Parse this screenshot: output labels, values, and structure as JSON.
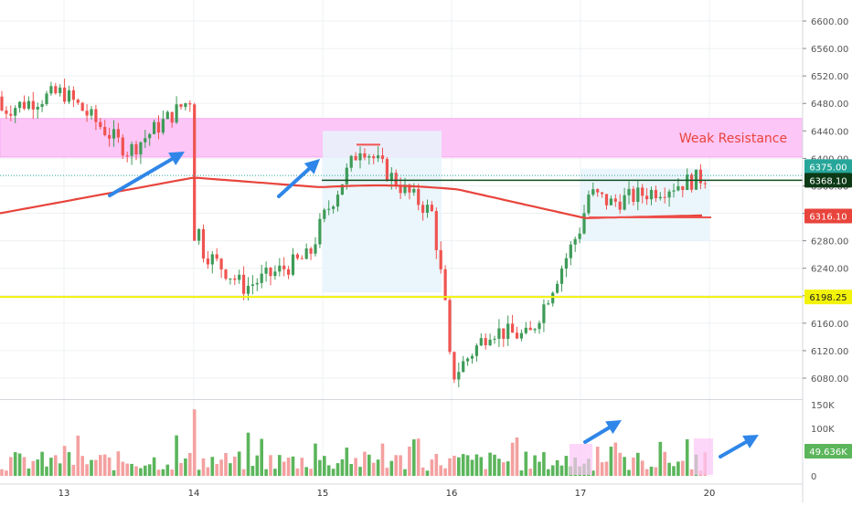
{
  "colors": {
    "up": "#26a69a",
    "up_body": "#3e9b58",
    "down": "#ef5350",
    "vol_up": "#5bb55b",
    "vol_down": "#f4a0a0",
    "ma": "#e8443c",
    "support": "#f2f20a",
    "resistance_zone": "#fcc6f7",
    "resistance_text": "#e8443c",
    "range_box": "#e7f3fb",
    "arrow": "#2f86e8",
    "ticket_green": "#1b6e34"
  },
  "chart_data": {
    "type": "candlestick",
    "instrument_timeframe": "",
    "x_tick_labels": [
      "13",
      "14",
      "15",
      "16",
      "17",
      "20"
    ],
    "y_tick_labels": [
      "6600.00",
      "6560.00",
      "6520.00",
      "6480.00",
      "6440.00",
      "6400.00",
      "6360.00",
      "6320.00",
      "6280.00",
      "6240.00",
      "6200.00",
      "6160.00",
      "6120.00",
      "6080.00"
    ],
    "ylim": [
      6060,
      6630
    ],
    "volume_tick_labels": [
      "150K",
      "100K",
      "50K",
      "0"
    ],
    "volume_ylim": [
      0,
      150000
    ],
    "price_labels": {
      "last": "6375.00",
      "trend_line": "6368.10",
      "moving_average": "6316.10",
      "support": "6198.25",
      "volume": "49.636K"
    },
    "levels": {
      "resistance_zone": [
        6402,
        6458
      ],
      "support": 6198.25,
      "trend_line": 6368.1,
      "last_price": 6375.0
    },
    "annotations": {
      "resistance_zone_label": "Weak Resistance"
    },
    "anchors": [
      {
        "label": "13",
        "day": 13,
        "price": 6495
      },
      {
        "label": "13.5",
        "day": 13.5,
        "price": 6410
      },
      {
        "label": "14",
        "day": 14,
        "price": 6490
      },
      {
        "label": "14.02",
        "day": 14.02,
        "price": 6410
      },
      {
        "label": "14.05",
        "day": 14.05,
        "price": 6270
      },
      {
        "label": "14.4",
        "day": 14.4,
        "price": 6212
      },
      {
        "label": "14.9",
        "day": 14.9,
        "price": 6258
      },
      {
        "label": "15",
        "day": 15,
        "price": 6310
      },
      {
        "label": "15.3",
        "day": 15.3,
        "price": 6420
      },
      {
        "label": "15.6",
        "day": 15.6,
        "price": 6360
      },
      {
        "label": "15.85",
        "day": 15.85,
        "price": 6320
      },
      {
        "label": "15.95",
        "day": 15.95,
        "price": 6190
      },
      {
        "label": "16",
        "day": 16,
        "price": 6080
      },
      {
        "label": "16.3",
        "day": 16.3,
        "price": 6150
      },
      {
        "label": "16.6",
        "day": 16.6,
        "price": 6140
      },
      {
        "label": "16.8",
        "day": 16.8,
        "price": 6220
      },
      {
        "label": "17",
        "day": 17,
        "price": 6300
      },
      {
        "label": "17.2",
        "day": 17.2,
        "price": 6350
      },
      {
        "label": "17.7",
        "day": 17.7,
        "price": 6335
      },
      {
        "label": "20",
        "day": 20,
        "price": 6375
      }
    ]
  }
}
